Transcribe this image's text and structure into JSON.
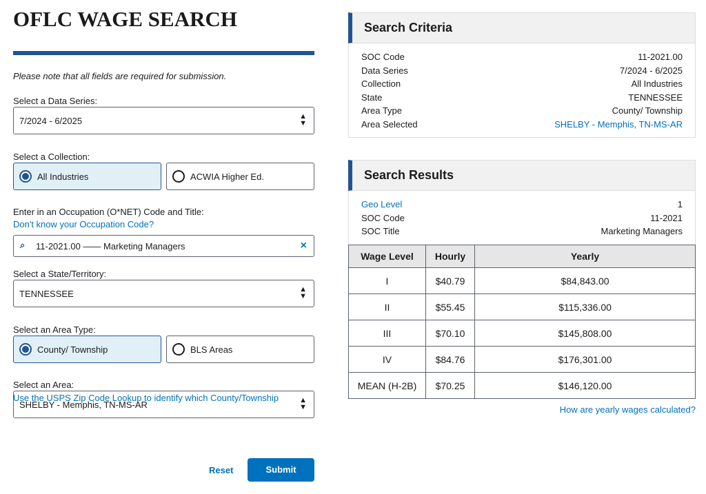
{
  "header": {
    "title": "OFLC WAGE SEARCH"
  },
  "form": {
    "note": "Please note that all fields are required for submission.",
    "data_series": {
      "label": "Select a Data Series:",
      "value": "7/2024 - 6/2025"
    },
    "collection": {
      "label": "Select a Collection:",
      "options": [
        "All Industries",
        "ACWIA Higher Ed."
      ],
      "selected": 0
    },
    "occupation": {
      "label": "Enter in an Occupation (O*NET) Code and Title:",
      "help_link": "Don't know your Occupation Code?",
      "value": "11-2021.00 —— Marketing Managers"
    },
    "state": {
      "label": "Select a State/Territory:",
      "value": "TENNESSEE"
    },
    "area_type": {
      "label": "Select an Area Type:",
      "options": [
        "County/ Township",
        "BLS Areas"
      ],
      "selected": 0
    },
    "area": {
      "label": "Select an Area:",
      "help_link": "Use the USPS Zip Code Lookup to identify which County/Township",
      "value": "SHELBY - Memphis, TN-MS-AR"
    },
    "buttons": {
      "reset": "Reset",
      "submit": "Submit"
    }
  },
  "search_criteria": {
    "title": "Search Criteria",
    "rows": [
      {
        "label": "SOC Code",
        "value": "11-2021.00"
      },
      {
        "label": "Data Series",
        "value": "7/2024 - 6/2025"
      },
      {
        "label": "Collection",
        "value": "All Industries"
      },
      {
        "label": "State",
        "value": "TENNESSEE"
      },
      {
        "label": "Area Type",
        "value": "County/ Township"
      },
      {
        "label": "Area Selected",
        "value": "SHELBY - Memphis, TN-MS-AR",
        "link": true
      }
    ]
  },
  "search_results": {
    "title": "Search Results",
    "rows": [
      {
        "label": "Geo Level",
        "value": "1",
        "label_link": true
      },
      {
        "label": "SOC Code",
        "value": "11-2021"
      },
      {
        "label": "SOC Title",
        "value": "Marketing Managers"
      }
    ],
    "table": {
      "headers": [
        "Wage Level",
        "Hourly",
        "Yearly"
      ],
      "rows": [
        [
          "I",
          "$40.79",
          "$84,843.00"
        ],
        [
          "II",
          "$55.45",
          "$115,336.00"
        ],
        [
          "III",
          "$70.10",
          "$145,808.00"
        ],
        [
          "IV",
          "$84.76",
          "$176,301.00"
        ],
        [
          "MEAN (H-2B)",
          "$70.25",
          "$146,120.00"
        ]
      ]
    },
    "footer_link": "How are yearly wages calculated?"
  }
}
